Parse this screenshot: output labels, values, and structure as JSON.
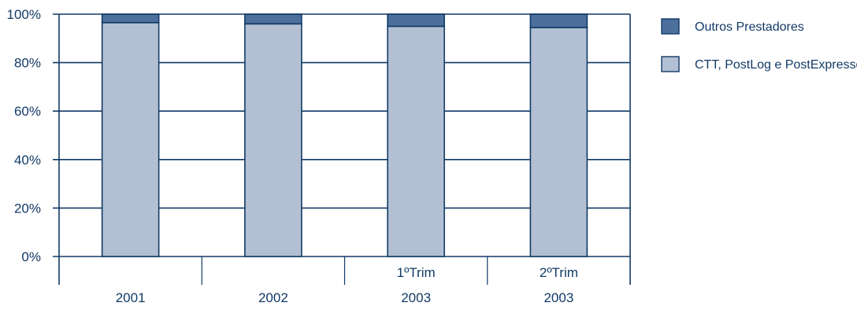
{
  "chart_data": {
    "type": "bar",
    "stacked": true,
    "ylim": [
      0,
      100
    ],
    "y_ticks": [
      "0%",
      "20%",
      "40%",
      "60%",
      "80%",
      "100%"
    ],
    "grid": true,
    "legend_position": "right",
    "categories": [
      {
        "top": "",
        "bottom": "2001"
      },
      {
        "top": "",
        "bottom": "2002"
      },
      {
        "top": "1ºTrim",
        "bottom": "2003"
      },
      {
        "top": "2ºTrim",
        "bottom": "2003"
      }
    ],
    "series": [
      {
        "name": "CTT, PostLog e PostExpresso",
        "values": [
          96.5,
          96.0,
          95.0,
          94.5
        ],
        "color": "#b3c0d3"
      },
      {
        "name": "Outros Prestadores",
        "values": [
          3.5,
          4.0,
          5.0,
          5.5
        ],
        "color": "#4d6f9c"
      }
    ],
    "legend": [
      {
        "label": "Outros Prestadores",
        "color": "#4d6f9c"
      },
      {
        "label": "CTT, PostLog e PostExpresso",
        "color": "#b3c0d3"
      }
    ],
    "colors": {
      "axis": "#123a66",
      "text": "#123a66"
    }
  }
}
